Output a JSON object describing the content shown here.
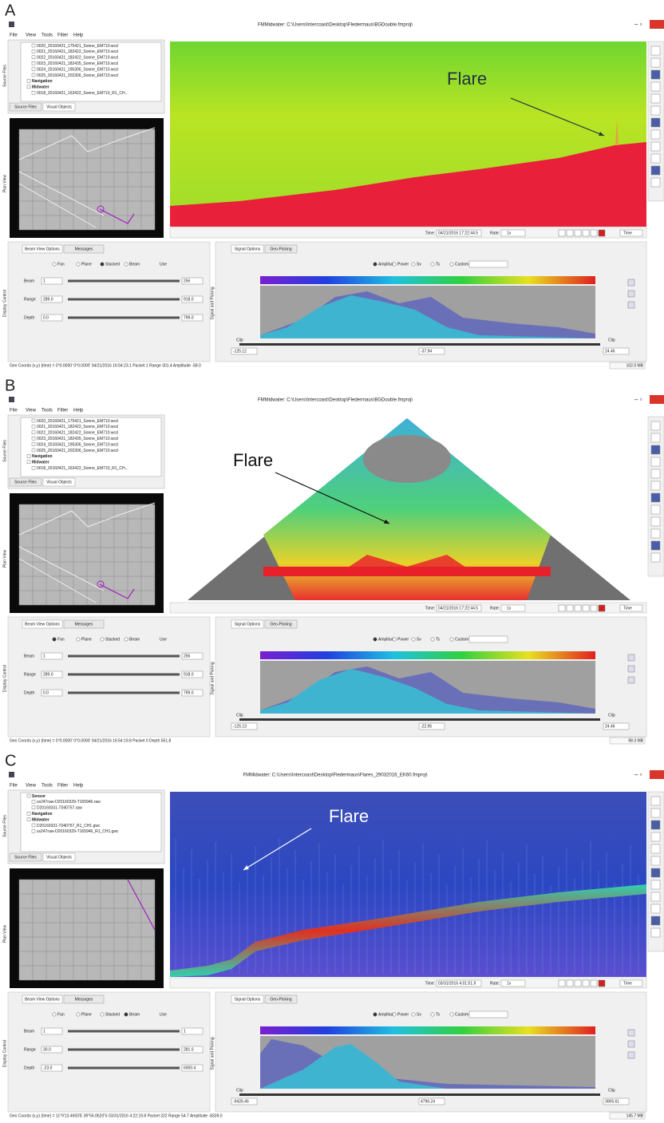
{
  "panels": [
    {
      "label": "A",
      "window_title": "FMMidwater: C:\\Users\\Intercoast\\Desktop\\Fledermaus\\BGDouble.fmproj\\",
      "menu": [
        "File",
        "View",
        "Tools",
        "Filter",
        "Help"
      ],
      "files": [
        "0020_20160421_175421_Sonne_EM710.wcd",
        "0021_20160421_182422_Sonne_EM710.wcd",
        "0022_20160421_182422_Sonne_EM710.wcd",
        "0023_20160421_182435_Sonne_EM710.wcd",
        "0024_20160421_195306_Sonne_EM710.wcd",
        "0025_20160421_202306_Sonne_EM710.wcd",
        "Navigation",
        "Midwater",
        "0018_20160421_163422_Sonne_EM710_R1_CH..."
      ],
      "file_tabs": [
        "Source Files",
        "Visual Objects"
      ],
      "side_labels": [
        "Source Files",
        "Plan View",
        "Display Control",
        "Signal and Picking"
      ],
      "annotation": "Flare",
      "time_label": "Time:",
      "time": "04/21/2016 17:22:44.5",
      "rate_label": "Rate:",
      "rate": "1x",
      "time_mode": "Time",
      "view_tabs": [
        "Beam View Options",
        "Messages"
      ],
      "view_modes": [
        "Fan",
        "Plane",
        "Stacked",
        "Beam"
      ],
      "selected_view_mode": 2,
      "use": "Use",
      "fields": [
        {
          "label": "Beam",
          "min": "1",
          "max": "256"
        },
        {
          "label": "Range",
          "min": "289.0",
          "max": "918.0"
        },
        {
          "label": "Depth",
          "min": "0.0",
          "max": "799.0"
        }
      ],
      "signal_tabs": [
        "Signal Options",
        "Geo-Picking"
      ],
      "signal_modes": [
        "Amplitude",
        "Power",
        "Sv",
        "Ts",
        "Custom"
      ],
      "clip": "Clip",
      "range_values": [
        "-125.12",
        "-37.94",
        "24.46"
      ],
      "status": "Geo Coords (x,y) (time) = 0°0.0000' 0°0.0000'  04/21/2016 16:54:23.1  Packet 1 Range 301.4  Amplitude -58.0",
      "memory": "102.0 MB"
    },
    {
      "label": "B",
      "window_title": "FMMidwater: C:\\Users\\Intercoast\\Desktop\\Fledermaus\\BGDouble.fmproj\\",
      "menu": [
        "File",
        "View",
        "Tools",
        "Filter",
        "Help"
      ],
      "files": [
        "0020_20160421_175421_Sonne_EM710.wcd",
        "0021_20160421_182422_Sonne_EM710.wcd",
        "0022_20160421_182422_Sonne_EM710.wcd",
        "0023_20160421_182435_Sonne_EM710.wcd",
        "0024_20160421_195306_Sonne_EM710.wcd",
        "0025_20160421_202306_Sonne_EM710.wcd",
        "Navigation",
        "Midwater",
        "0018_20160421_163422_Sonne_EM710_R1_CH..."
      ],
      "file_tabs": [
        "Source Files",
        "Visual Objects"
      ],
      "side_labels": [
        "Source Files",
        "Plan View",
        "Display Control",
        "Signal and Picking"
      ],
      "annotation": "Flare",
      "time_label": "Time:",
      "time": "04/21/2016 17:22:44.5",
      "rate_label": "Rate:",
      "rate": "1x",
      "time_mode": "Time",
      "view_tabs": [
        "Beam View Options",
        "Messages"
      ],
      "view_modes": [
        "Fan",
        "Plane",
        "Stacked",
        "Beam"
      ],
      "selected_view_mode": 0,
      "use": "Use",
      "fields": [
        {
          "label": "Beam",
          "min": "1",
          "max": "256"
        },
        {
          "label": "Range",
          "min": "289.0",
          "max": "918.0"
        },
        {
          "label": "Depth",
          "min": "0.0",
          "max": "799.0"
        }
      ],
      "signal_tabs": [
        "Signal Options",
        "Geo-Picking"
      ],
      "signal_modes": [
        "Amplitude",
        "Power",
        "Sv",
        "Ts",
        "Custom"
      ],
      "clip": "Clip",
      "range_values": [
        "-125.13",
        "-22.95",
        "24.46"
      ],
      "status": "Geo Coords (x,y) (time) = 0°0.0000' 0°0.0000'  04/21/2016 16:54:19.8  Packet 0 Depth 551.8",
      "memory": "98.3 MB"
    },
    {
      "label": "C",
      "window_title": "FMMidwater: C:\\Users\\Intercoast\\Desktop\\Fledermaus\\Flares_29032016_EK60.fmproj\\",
      "menu": [
        "File",
        "View",
        "Tools",
        "Filter",
        "Help"
      ],
      "files": [
        "Sensor",
        "ss247raw-D20160329-T165946.raw",
        "D20160331-T040757.raw",
        "Navigation",
        "Midwater",
        "D20160331-T040757_R1_CH1.gwc",
        "ss247raw-D20160329-T165946_R1_CH1.gwc"
      ],
      "file_tabs": [
        "Source Files",
        "Visual Objects"
      ],
      "side_labels": [
        "Source Files",
        "Plan View",
        "Display Control",
        "Signal and Picking"
      ],
      "annotation": "Flare",
      "time_label": "Time:",
      "time": "03/31/2016 4:01:51.9",
      "rate_label": "Rate:",
      "rate": "1x",
      "time_mode": "Time",
      "view_tabs": [
        "Beam View Options",
        "Messages"
      ],
      "view_modes": [
        "Fan",
        "Plane",
        "Stacked",
        "Beam"
      ],
      "selected_view_mode": 3,
      "use": "Use",
      "fields": [
        {
          "label": "Beam",
          "min": "1",
          "max": "1"
        },
        {
          "label": "Range",
          "min": "30.0",
          "max": "281.0"
        },
        {
          "label": "Depth",
          "min": "-23.0",
          "max": "6000.4"
        }
      ],
      "signal_tabs": [
        "Signal Options",
        "Geo-Picking"
      ],
      "signal_modes": [
        "Amplitude",
        "Power",
        "Sv",
        "Ts",
        "Custom"
      ],
      "clip": "Clip",
      "range_values": [
        "-9426.46",
        "4796.24",
        "3005.61"
      ],
      "status": "Geo Coords (x,y) (time) = 11°9'13.4693'E 39°56.0620'S  03/31/2016 4:22:19.8  Packet 322 Range 54.7  Amplitude -8339.0",
      "memory": "145.7 MB"
    }
  ]
}
